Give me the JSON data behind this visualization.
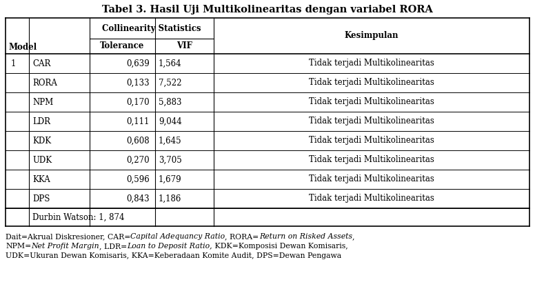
{
  "title": "Tabel 3. Hasil Uji Multikolinearitas dengan variabel RORA",
  "col_header_cs": "Collinearity Statistics",
  "col_header_kesimpulan": "Kesimpulan",
  "col_model": "Model",
  "col_tolerance": "Tolerance",
  "col_vif": "VIF",
  "rows": [
    [
      "1",
      "CAR",
      "0,639",
      "1,564",
      "Tidak terjadi Multikolinearitas"
    ],
    [
      "",
      "RORA",
      "0,133",
      "7,522",
      "Tidak terjadi Multikolinearitas"
    ],
    [
      "",
      "NPM",
      "0,170",
      "5,883",
      "Tidak terjadi Multikolinearitas"
    ],
    [
      "",
      "LDR",
      "0,111",
      "9,044",
      "Tidak terjadi Multikolinearitas"
    ],
    [
      "",
      "KDK",
      "0,608",
      "1,645",
      "Tidak terjadi Multikolinearitas"
    ],
    [
      "",
      "UDK",
      "0,270",
      "3,705",
      "Tidak terjadi Multikolinearitas"
    ],
    [
      "",
      "KKA",
      "0,596",
      "1,679",
      "Tidak terjadi Multikolinearitas"
    ],
    [
      "",
      "DPS",
      "0,843",
      "1,186",
      "Tidak terjadi Multikolinearitas"
    ]
  ],
  "durbin_watson": "Durbin Watson: 1, 874",
  "bg_color": "#ffffff",
  "title_fontsize": 10.5,
  "header_fontsize": 8.5,
  "cell_fontsize": 8.5,
  "footnote_fontsize": 7.8
}
